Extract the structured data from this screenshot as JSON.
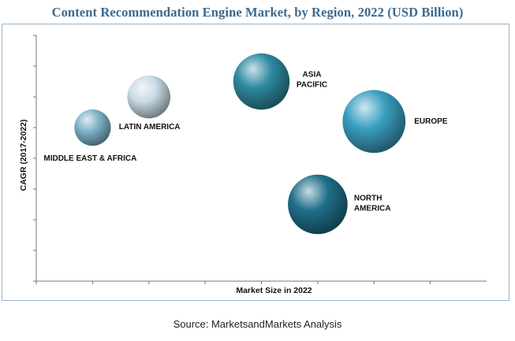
{
  "chart_data": {
    "type": "scatter",
    "title": "Content Recommendation Engine Market, by Region, 2022 (USD Billion)",
    "xlabel": "Market Size in 2022",
    "ylabel": "CAGR (2017-2022)",
    "xlim": [
      0,
      8
    ],
    "ylim": [
      0,
      8
    ],
    "grid": false,
    "points": [
      {
        "label": "MIDDLE EAST & AFRICA",
        "x": 1.0,
        "y": 5.0,
        "size": 0.55,
        "color": "#7fb3c8"
      },
      {
        "label": "LATIN AMERICA",
        "x": 2.0,
        "y": 6.0,
        "size": 0.65,
        "color": "#c9dce6"
      },
      {
        "label": "ASIA PACIFIC",
        "x": 4.0,
        "y": 6.5,
        "size": 0.85,
        "color": "#2f8aa0"
      },
      {
        "label": "EUROPE",
        "x": 6.0,
        "y": 5.2,
        "size": 0.95,
        "color": "#3aa0c0"
      },
      {
        "label": "NORTH AMERICA",
        "x": 5.0,
        "y": 2.5,
        "size": 0.9,
        "color": "#1f6f8a"
      }
    ]
  },
  "source": "Source: MarketsandMarkets Analysis"
}
